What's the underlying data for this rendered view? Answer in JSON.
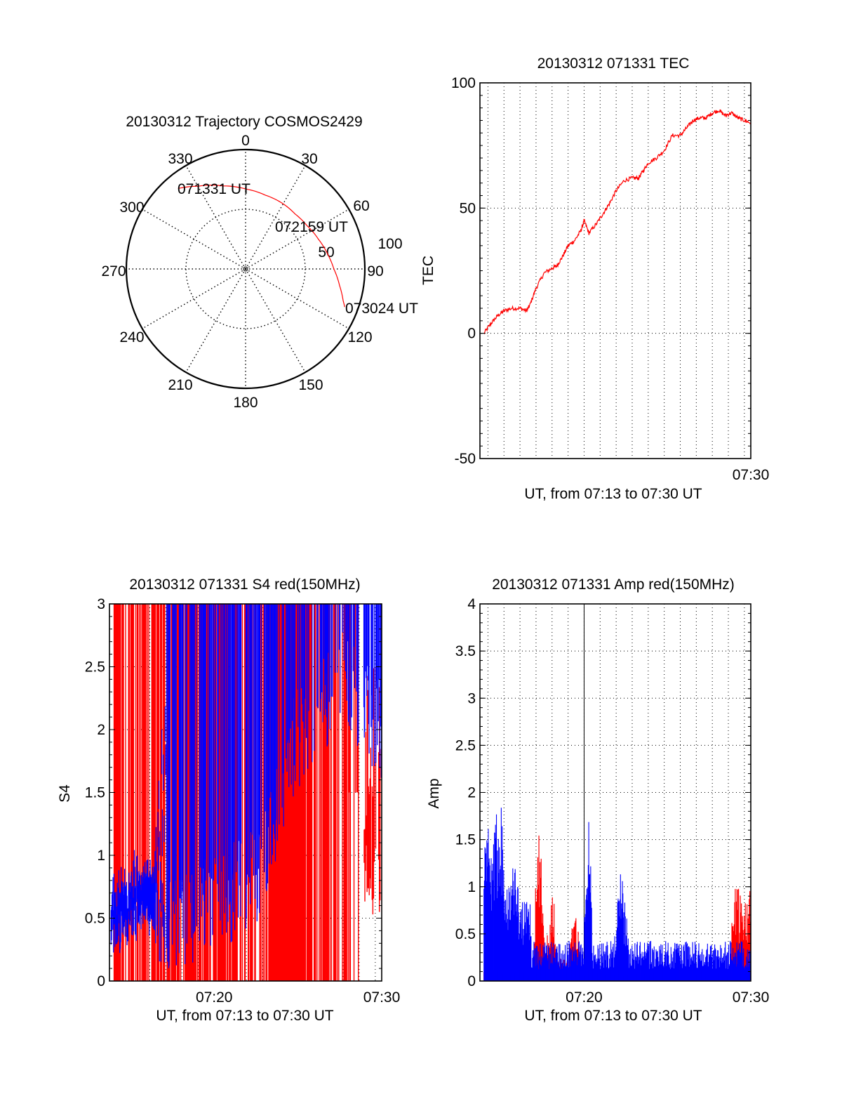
{
  "chart_data": [
    {
      "id": "trajectory",
      "type": "polar",
      "title": "20130312 Trajectory COSMOS2429",
      "azimuth_labels": [
        "0",
        "30",
        "60",
        "90",
        "120",
        "150",
        "180",
        "210",
        "240",
        "270",
        "300",
        "330"
      ],
      "radial_labels": [
        "50",
        "100"
      ],
      "rlim": [
        0,
        100
      ],
      "trace_color": "#ff0000",
      "trajectory": [
        {
          "az": 320,
          "r": 88
        },
        {
          "az": 330,
          "r": 80
        },
        {
          "az": 345,
          "r": 72
        },
        {
          "az": 0,
          "r": 67
        },
        {
          "az": 15,
          "r": 64
        },
        {
          "az": 30,
          "r": 63
        },
        {
          "az": 42,
          "r": 62
        },
        {
          "az": 55,
          "r": 63
        },
        {
          "az": 68,
          "r": 66
        },
        {
          "az": 80,
          "r": 70
        },
        {
          "az": 90,
          "r": 74
        },
        {
          "az": 100,
          "r": 80
        },
        {
          "az": 108,
          "r": 86
        },
        {
          "az": 111,
          "r": 89
        }
      ],
      "annotations": [
        {
          "text": "071331 UT",
          "az": 324,
          "r": 86
        },
        {
          "text": "072159 UT",
          "az": 45,
          "r": 66
        },
        {
          "text": "073024 UT",
          "az": 111,
          "r": 89
        }
      ]
    },
    {
      "id": "tec",
      "type": "line",
      "title": "20130312 071331 TEC",
      "xlabel": "UT, from 07:13 to 07:30 UT",
      "ylabel": "TEC",
      "xlim_minutes": [
        13.5,
        30.4
      ],
      "ylim": [
        -50,
        100
      ],
      "yticks": [
        "-50",
        "0",
        "50",
        "100"
      ],
      "xticks": [
        {
          "minute": 30.4,
          "label": "07:30"
        }
      ],
      "grid": true,
      "color": "#ff0000",
      "x": [
        13.75,
        14.2,
        14.6,
        15.0,
        15.5,
        16.0,
        16.4,
        16.6,
        17.0,
        17.5,
        18.0,
        18.3,
        18.6,
        19.0,
        19.4,
        19.8,
        20.0,
        20.3,
        20.8,
        21.2,
        21.6,
        22.0,
        22.5,
        23.0,
        23.4,
        23.7,
        24.0,
        24.5,
        25.0,
        25.5,
        26.0,
        26.4,
        26.8,
        27.2,
        27.6,
        28.0,
        28.4,
        28.8,
        29.2,
        29.6,
        30.0,
        30.4
      ],
      "y": [
        0,
        4,
        7,
        9,
        10,
        10,
        9,
        11,
        18,
        24,
        26,
        27,
        30,
        35,
        37,
        41,
        45,
        40,
        44,
        48,
        52,
        57,
        61,
        62,
        62,
        65,
        68,
        70,
        73,
        79,
        79,
        82,
        85,
        86,
        86,
        88,
        89,
        87,
        88,
        86,
        85,
        84
      ]
    },
    {
      "id": "s4",
      "type": "line",
      "title": "20130312 071331 S4 red(150MHz)",
      "xlabel": "UT, from 07:13 to 07:30 UT",
      "ylabel": "S4",
      "xlim_minutes": [
        13.5,
        30.4
      ],
      "ylim": [
        0,
        3
      ],
      "yticks": [
        "0",
        "0.5",
        "1",
        "1.5",
        "2",
        "2.5",
        "3"
      ],
      "xticks": [
        {
          "minute": 20,
          "label": "07:20"
        },
        {
          "minute": 30.4,
          "label": "07:30"
        }
      ],
      "grid": true,
      "series": [
        {
          "name": "red",
          "color": "#ff0000",
          "description": "saturated oscillation 0-3 across the pass, dense band 07:23.5-07:25.5, drops to 0.5-1.5 after 07:29"
        },
        {
          "name": "blue",
          "color": "#0000ff",
          "envelope": [
            {
              "minute": 13.6,
              "low": 0.4,
              "high": 0.6
            },
            {
              "minute": 15.0,
              "low": 0.5,
              "high": 0.8
            },
            {
              "minute": 16.3,
              "low": 0.55,
              "high": 0.75
            },
            {
              "minute": 17.0,
              "low": 0.0,
              "high": 3.0
            },
            {
              "minute": 21.0,
              "low": 0.3,
              "high": 3.0
            },
            {
              "minute": 23.0,
              "low": 0.5,
              "high": 3.0
            },
            {
              "minute": 25.0,
              "low": 1.5,
              "high": 3.0
            },
            {
              "minute": 28.0,
              "low": 2.0,
              "high": 3.0
            },
            {
              "minute": 30.4,
              "low": 1.6,
              "high": 3.0
            }
          ]
        }
      ]
    },
    {
      "id": "amp",
      "type": "line",
      "title": "20130312 071331 Amp red(150MHz)",
      "xlabel": "UT, from 07:13 to 07:30 UT",
      "ylabel": "Amp",
      "xlim_minutes": [
        13.5,
        30.4
      ],
      "ylim": [
        0,
        4
      ],
      "yticks": [
        "0",
        "0.5",
        "1",
        "1.5",
        "2",
        "2.5",
        "3",
        "3.5",
        "4"
      ],
      "xticks": [
        {
          "minute": 20,
          "label": "07:20"
        },
        {
          "minute": 30.4,
          "label": "07:30"
        }
      ],
      "grid": true,
      "series": [
        {
          "name": "blue",
          "color": "#0000ff",
          "peaks": [
            {
              "minute": 14.0,
              "value": 1.8
            },
            {
              "minute": 14.7,
              "value": 2.25
            },
            {
              "minute": 15.6,
              "value": 1.45
            },
            {
              "minute": 20.3,
              "value": 1.75
            },
            {
              "minute": 22.3,
              "value": 1.2
            },
            {
              "minute": 25.2,
              "value": 0.5
            }
          ],
          "baseline": 0.25
        },
        {
          "name": "red",
          "color": "#ff0000",
          "peaks": [
            {
              "minute": 17.2,
              "value": 1.65
            },
            {
              "minute": 18.0,
              "value": 1.05
            },
            {
              "minute": 19.4,
              "value": 0.95
            },
            {
              "minute": 29.5,
              "value": 1.0
            }
          ],
          "baseline": 0.1
        }
      ]
    }
  ]
}
